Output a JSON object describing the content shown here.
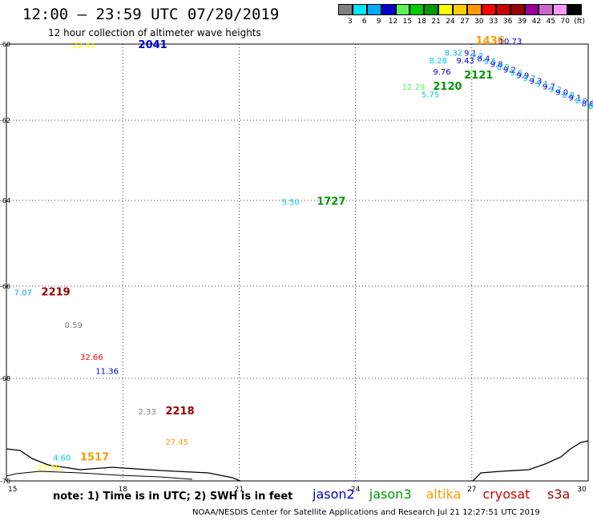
{
  "header": {
    "title": "12:00 — 23:59 UTC 07/20/2019",
    "subtitle": "12 hour collection of altimeter wave heights"
  },
  "legend": {
    "unit": "(ft)",
    "colors": [
      "#808080",
      "#00e5ff",
      "#00aaff",
      "#0000cc",
      "#5cf25c",
      "#00cc00",
      "#009900",
      "#ffff00",
      "#ffcc00",
      "#ff9900",
      "#ff0000",
      "#cc0000",
      "#990000",
      "#990099",
      "#cc66cc",
      "#ff99ff",
      "#000000"
    ],
    "labels": [
      "3",
      "6",
      "9",
      "12",
      "15",
      "18",
      "21",
      "24",
      "27",
      "30",
      "33",
      "36",
      "39",
      "42",
      "45",
      "70"
    ]
  },
  "axes": {
    "x_ticks": [
      "15",
      "18",
      "21",
      "24",
      "27",
      "30"
    ],
    "y_ticks": [
      "-60",
      "-62",
      "-64",
      "-66",
      "-68",
      "-70"
    ]
  },
  "observations": [
    {
      "text": "22.41",
      "color": "#ffff00",
      "lon": 16.7,
      "lat": -60.1
    },
    {
      "text": "2041",
      "color": "#0000cc",
      "lon": 18.4,
      "lat": -60.1,
      "time": true
    },
    {
      "text": "5.50",
      "color": "#00ccee",
      "lon": 22.1,
      "lat": -64.1
    },
    {
      "text": "1727",
      "color": "#009900",
      "lon": 23.0,
      "lat": -64.1,
      "time": true
    },
    {
      "text": "7.07",
      "color": "#00aaff",
      "lon": 15.2,
      "lat": -66.2
    },
    {
      "text": "2219",
      "color": "#990000",
      "lon": 15.9,
      "lat": -66.2,
      "time": true
    },
    {
      "text": "0.59",
      "color": "#808080",
      "lon": 16.5,
      "lat": -66.9
    },
    {
      "text": "32.66",
      "color": "#ff0000",
      "lon": 16.9,
      "lat": -67.6
    },
    {
      "text": "11.36",
      "color": "#0000cc",
      "lon": 17.3,
      "lat": -67.9
    },
    {
      "text": "2.33",
      "color": "#808080",
      "lon": 18.4,
      "lat": -68.7
    },
    {
      "text": "2218",
      "color": "#990000",
      "lon": 19.1,
      "lat": -68.7,
      "time": true
    },
    {
      "text": "27.45",
      "color": "#ff9900",
      "lon": 19.1,
      "lat": -69.3
    },
    {
      "text": "4.60",
      "color": "#00ccee",
      "lon": 16.2,
      "lat": -69.6
    },
    {
      "text": "1517",
      "color": "#ff9900",
      "lon": 16.9,
      "lat": -69.6,
      "time": true
    },
    {
      "text": "22.98",
      "color": "#ffff00",
      "lon": 15.8,
      "lat": -69.8
    },
    {
      "text": "12.29",
      "color": "#5cf25c",
      "lon": 25.2,
      "lat": -61.2
    },
    {
      "text": "5.75",
      "color": "#00ccee",
      "lon": 25.7,
      "lat": -61.4
    },
    {
      "text": "2120",
      "color": "#009900",
      "lon": 26.0,
      "lat": -61.2,
      "time": true
    },
    {
      "text": "9.76",
      "color": "#0000cc",
      "lon": 26.0,
      "lat": -60.8
    },
    {
      "text": "8.28",
      "color": "#00ccee",
      "lon": 25.9,
      "lat": -60.5
    },
    {
      "text": "2121",
      "color": "#009900",
      "lon": 26.8,
      "lat": -60.9,
      "time": true
    },
    {
      "text": "9.43",
      "color": "#0000cc",
      "lon": 26.6,
      "lat": -60.5
    },
    {
      "text": "8.32",
      "color": "#00aaff",
      "lon": 26.3,
      "lat": -60.3
    },
    {
      "text": "1436",
      "color": "#ff9900",
      "lon": 27.1,
      "lat": -60.0,
      "time": true
    },
    {
      "text": "10.73",
      "color": "#0000cc",
      "lon": 27.7,
      "lat": -60.0
    }
  ],
  "track": {
    "color": "#00aaff",
    "values": [
      "9.1",
      "9.2",
      "8.4",
      "9.5",
      "9.8",
      "8.9",
      "9.2",
      "9.6",
      "9.9",
      "9.7",
      "9.3",
      "9.1",
      "9.7",
      "9.2",
      "9.0",
      "8.8",
      "9.1",
      "8.9",
      "8.6",
      "8.4"
    ]
  },
  "footer": {
    "note": "note: 1) Time is in UTC; 2) SWH is in feet",
    "satellites": [
      {
        "name": "jason2",
        "color": "#0000cc"
      },
      {
        "name": "jason3",
        "color": "#009900"
      },
      {
        "name": "altika",
        "color": "#ff9900"
      },
      {
        "name": "cryosat",
        "color": "#cc0000"
      },
      {
        "name": "s3a",
        "color": "#990000"
      }
    ],
    "credit": "NOAA/NESDIS Center for Satellite Applications and Research    Jul 21 12:27:51 UTC 2019"
  }
}
